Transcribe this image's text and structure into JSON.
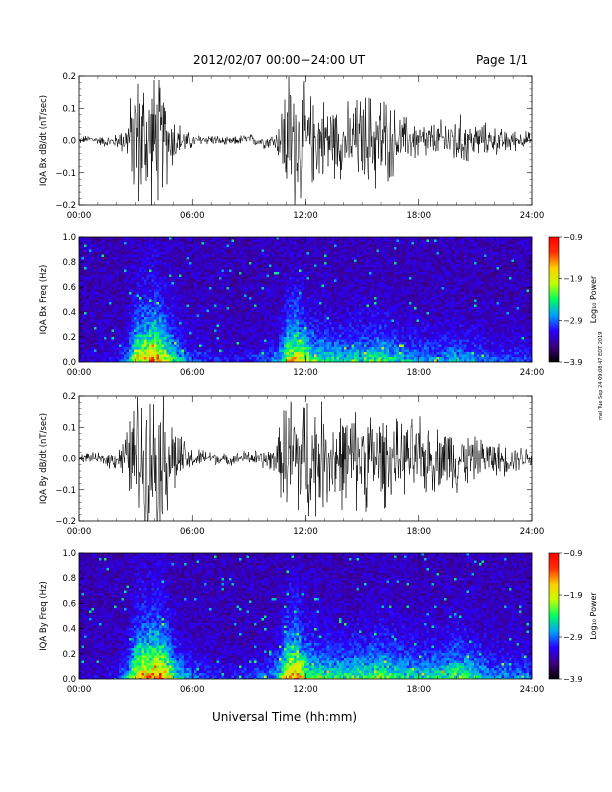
{
  "header": {
    "title": "2012/02/07  00:00−24:00 UT",
    "page": "Page 1/1"
  },
  "stamp": "mel Tue Sep 24 09:08:47 EDT 2019",
  "chart_data": [
    {
      "type": "line",
      "ylabel": "IQA Bx dB/dt (nT/sec)",
      "ylim": [
        -0.2,
        0.2
      ],
      "yticks": [
        "0.2",
        "0.1",
        "0.0",
        "−0.1",
        "−0.2"
      ],
      "yvals": [
        0.2,
        0.1,
        0.0,
        -0.1,
        -0.2
      ],
      "xticks": [
        "00:00",
        "06:00",
        "12:00",
        "18:00",
        "24:00"
      ],
      "xlim": [
        0,
        24
      ],
      "amplitude_envelope": {
        "hours": [
          0,
          1,
          2,
          2.5,
          3,
          3.5,
          4,
          4.5,
          5,
          5.5,
          6,
          7,
          8,
          9,
          10,
          10.5,
          11,
          11.5,
          12,
          12.5,
          13,
          14,
          15,
          16,
          17,
          18,
          19,
          20,
          21,
          22,
          23,
          24
        ],
        "amp": [
          0.01,
          0.012,
          0.02,
          0.05,
          0.2,
          0.2,
          0.2,
          0.15,
          0.08,
          0.04,
          0.02,
          0.015,
          0.012,
          0.015,
          0.02,
          0.03,
          0.2,
          0.2,
          0.15,
          0.12,
          0.12,
          0.1,
          0.13,
          0.15,
          0.07,
          0.06,
          0.05,
          0.08,
          0.05,
          0.04,
          0.03,
          0.02
        ]
      }
    },
    {
      "type": "heatmap",
      "ylabel": "IQA Bx Freq (Hz)",
      "ylim": [
        0.0,
        1.0
      ],
      "yticks": [
        "1.0",
        "0.8",
        "0.6",
        "0.4",
        "0.2",
        "0.0"
      ],
      "yvals": [
        1.0,
        0.8,
        0.6,
        0.4,
        0.2,
        0.0
      ],
      "xticks": [
        "00:00",
        "06:00",
        "12:00",
        "18:00",
        "24:00"
      ],
      "xlim": [
        0,
        24
      ],
      "colorbar": {
        "label": "Log₁₀ Power",
        "ticks": [
          "−0.9",
          "−1.9",
          "−2.9",
          "−3.9"
        ],
        "range": [
          -3.9,
          -0.9
        ],
        "colors": [
          "#000000",
          "#3b0080",
          "#2a00ff",
          "#00a0ff",
          "#00ff60",
          "#c0ff00",
          "#ffd000",
          "#ff3000",
          "#ff0000"
        ]
      },
      "activity_envelope": {
        "hours": [
          0,
          1,
          2,
          2.5,
          3,
          3.5,
          4,
          4.5,
          5,
          5.5,
          6,
          7,
          8,
          9,
          10,
          10.5,
          11,
          11.5,
          12,
          12.5,
          13,
          14,
          15,
          16,
          17,
          18,
          19,
          20,
          21,
          22,
          23,
          24
        ],
        "amp": [
          0.05,
          0.06,
          0.1,
          0.3,
          0.75,
          0.8,
          0.9,
          0.7,
          0.45,
          0.3,
          0.2,
          0.15,
          0.1,
          0.15,
          0.2,
          0.3,
          0.7,
          0.8,
          0.55,
          0.45,
          0.45,
          0.4,
          0.45,
          0.5,
          0.35,
          0.3,
          0.3,
          0.35,
          0.25,
          0.2,
          0.2,
          0.15
        ]
      }
    },
    {
      "type": "line",
      "ylabel": "IQA By dB/dt (nT/sec)",
      "ylim": [
        -0.2,
        0.2
      ],
      "yticks": [
        "0.2",
        "0.1",
        "0.0",
        "−0.1",
        "−0.2"
      ],
      "yvals": [
        0.2,
        0.1,
        0.0,
        -0.1,
        -0.2
      ],
      "xticks": [
        "00:00",
        "06:00",
        "12:00",
        "18:00",
        "24:00"
      ],
      "xlim": [
        0,
        24
      ],
      "amplitude_envelope": {
        "hours": [
          0,
          1,
          2,
          2.5,
          3,
          3.5,
          4,
          4.5,
          5,
          5.5,
          6,
          7,
          8,
          9,
          10,
          10.5,
          11,
          11.5,
          12,
          12.5,
          13,
          14,
          15,
          16,
          17,
          18,
          19,
          20,
          21,
          22,
          23,
          24
        ],
        "amp": [
          0.012,
          0.014,
          0.03,
          0.07,
          0.2,
          0.2,
          0.2,
          0.2,
          0.12,
          0.06,
          0.03,
          0.02,
          0.015,
          0.02,
          0.03,
          0.05,
          0.2,
          0.2,
          0.2,
          0.18,
          0.15,
          0.14,
          0.15,
          0.14,
          0.1,
          0.12,
          0.09,
          0.1,
          0.06,
          0.05,
          0.04,
          0.03
        ]
      }
    },
    {
      "type": "heatmap",
      "ylabel": "IQA By Freq (Hz)",
      "ylim": [
        0.0,
        1.0
      ],
      "yticks": [
        "1.0",
        "0.8",
        "0.6",
        "0.4",
        "0.2",
        "0.0"
      ],
      "yvals": [
        1.0,
        0.8,
        0.6,
        0.4,
        0.2,
        0.0
      ],
      "xticks": [
        "00:00",
        "06:00",
        "12:00",
        "18:00",
        "24:00"
      ],
      "xlim": [
        0,
        24
      ],
      "colorbar": {
        "label": "Log₁₀ Power",
        "ticks": [
          "−0.9",
          "−1.9",
          "−2.9",
          "−3.9"
        ],
        "range": [
          -3.9,
          -0.9
        ],
        "colors": [
          "#000000",
          "#3b0080",
          "#2a00ff",
          "#00a0ff",
          "#00ff60",
          "#c0ff00",
          "#ffd000",
          "#ff3000",
          "#ff0000"
        ]
      },
      "activity_envelope": {
        "hours": [
          0,
          1,
          2,
          2.5,
          3,
          3.5,
          4,
          4.5,
          5,
          5.5,
          6,
          7,
          8,
          9,
          10,
          10.5,
          11,
          11.5,
          12,
          12.5,
          13,
          14,
          15,
          16,
          17,
          18,
          19,
          20,
          21,
          22,
          23,
          24
        ],
        "amp": [
          0.06,
          0.07,
          0.12,
          0.35,
          0.8,
          0.85,
          0.95,
          0.8,
          0.5,
          0.35,
          0.25,
          0.15,
          0.12,
          0.18,
          0.25,
          0.4,
          0.8,
          0.85,
          0.6,
          0.5,
          0.5,
          0.45,
          0.5,
          0.55,
          0.45,
          0.4,
          0.45,
          0.55,
          0.4,
          0.3,
          0.3,
          0.25
        ]
      }
    }
  ],
  "xaxis_label": "Universal Time (hh:mm)"
}
